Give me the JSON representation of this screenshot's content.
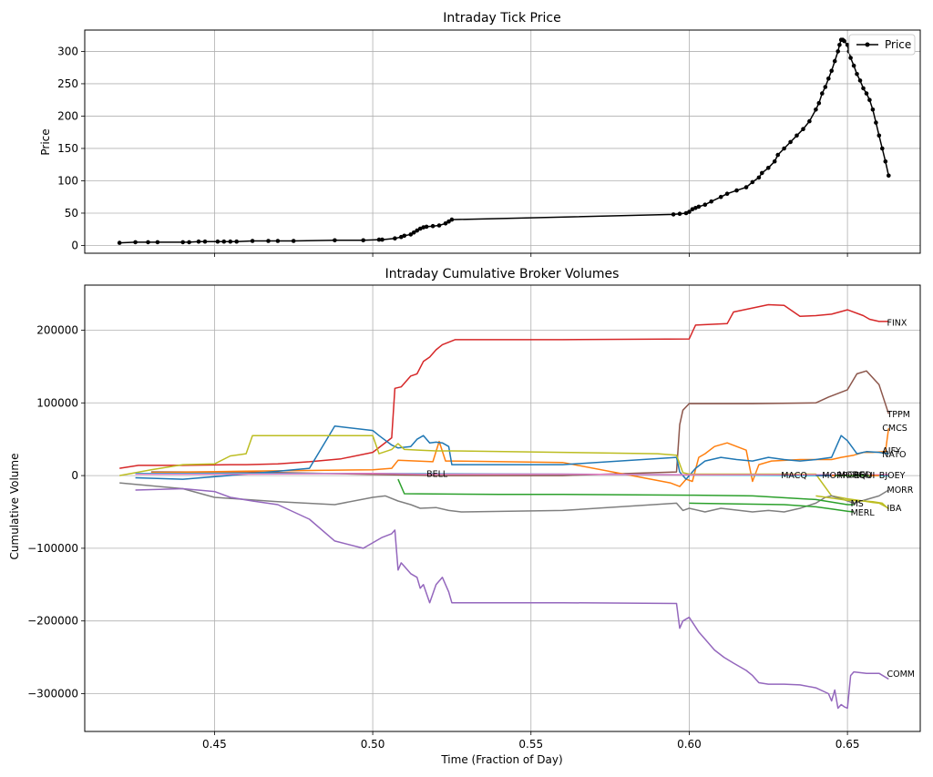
{
  "figure": {
    "xlabel": "Time (Fraction of Day)",
    "xticks": [
      0.45,
      0.5,
      0.55,
      0.6,
      0.65
    ],
    "xtick_labels": [
      "0.45",
      "0.50",
      "0.55",
      "0.60",
      "0.65"
    ],
    "xlim": [
      0.409,
      0.673
    ]
  },
  "chart_data": [
    {
      "type": "line",
      "title": "Intraday Tick Price",
      "xlabel": "",
      "ylabel": "Price",
      "ylim": [
        -12,
        333
      ],
      "yticks": [
        0,
        50,
        100,
        150,
        200,
        250,
        300
      ],
      "ytick_labels": [
        "0",
        "50",
        "100",
        "150",
        "200",
        "250",
        "300"
      ],
      "grid": true,
      "legend": {
        "position": "top-right",
        "entries": [
          "Price"
        ]
      },
      "series": [
        {
          "name": "Price",
          "color": "#000000",
          "marker": "dot",
          "x": [
            0.42,
            0.425,
            0.429,
            0.432,
            0.44,
            0.442,
            0.445,
            0.447,
            0.451,
            0.453,
            0.455,
            0.457,
            0.462,
            0.467,
            0.47,
            0.475,
            0.488,
            0.497,
            0.502,
            0.503,
            0.507,
            0.509,
            0.51,
            0.512,
            0.513,
            0.514,
            0.515,
            0.516,
            0.517,
            0.519,
            0.521,
            0.523,
            0.524,
            0.525,
            0.595,
            0.597,
            0.599,
            0.6,
            0.601,
            0.602,
            0.603,
            0.605,
            0.607,
            0.61,
            0.612,
            0.615,
            0.618,
            0.62,
            0.622,
            0.623,
            0.625,
            0.627,
            0.628,
            0.63,
            0.632,
            0.634,
            0.636,
            0.638,
            0.64,
            0.641,
            0.642,
            0.643,
            0.644,
            0.645,
            0.646,
            0.647,
            0.6475,
            0.648,
            0.6485,
            0.649,
            0.65,
            0.6505,
            0.651,
            0.652,
            0.653,
            0.654,
            0.655,
            0.656,
            0.657,
            0.658,
            0.659,
            0.66,
            0.661,
            0.662,
            0.663
          ],
          "y": [
            4,
            5,
            5,
            5,
            5,
            5,
            6,
            6,
            6,
            6,
            6,
            6,
            7,
            7,
            7,
            7,
            8,
            8,
            9,
            9,
            11,
            13,
            15,
            17,
            20,
            23,
            26,
            28,
            29,
            30,
            31,
            34,
            37,
            40,
            48,
            49,
            50,
            52,
            56,
            58,
            60,
            63,
            68,
            75,
            80,
            85,
            90,
            98,
            105,
            112,
            120,
            130,
            140,
            150,
            160,
            170,
            180,
            192,
            210,
            220,
            235,
            245,
            258,
            270,
            285,
            300,
            310,
            318,
            318,
            316,
            310,
            300,
            290,
            278,
            265,
            255,
            243,
            235,
            225,
            210,
            190,
            170,
            150,
            130,
            108
          ]
        }
      ]
    },
    {
      "type": "line",
      "title": "Intraday Cumulative Broker Volumes",
      "xlabel": "Time (Fraction of Day)",
      "ylabel": "Cumulative Volume",
      "ylim": [
        -352000,
        262000
      ],
      "yticks": [
        200000,
        100000,
        0,
        -100000,
        -200000,
        -300000
      ],
      "ytick_labels": [
        "200000",
        "100000",
        "0",
        "−100000",
        "−200000",
        "−300000"
      ],
      "grid": true,
      "series": [
        {
          "name": "FINX",
          "color": "#d62728",
          "x": [
            0.42,
            0.426,
            0.44,
            0.455,
            0.46,
            0.47,
            0.48,
            0.49,
            0.5,
            0.506,
            0.507,
            0.509,
            0.512,
            0.514,
            0.516,
            0.518,
            0.52,
            0.522,
            0.526,
            0.56,
            0.6,
            0.602,
            0.612,
            0.614,
            0.625,
            0.63,
            0.635,
            0.64,
            0.645,
            0.65,
            0.655,
            0.657,
            0.66,
            0.663
          ],
          "y": [
            10000,
            14000,
            14000,
            15000,
            15000,
            16000,
            19000,
            23000,
            32000,
            52000,
            120000,
            122000,
            137000,
            140000,
            157000,
            163000,
            173000,
            180000,
            187000,
            187000,
            188000,
            207000,
            209000,
            225000,
            235000,
            234000,
            219000,
            220000,
            222000,
            228000,
            220000,
            215000,
            212000,
            212000
          ]
        },
        {
          "name": "TPPM",
          "color": "#8c564b",
          "x": [
            0.43,
            0.46,
            0.52,
            0.56,
            0.596,
            0.597,
            0.598,
            0.6,
            0.62,
            0.64,
            0.644,
            0.65,
            0.653,
            0.656,
            0.66,
            0.663
          ],
          "y": [
            5000,
            5000,
            0,
            0,
            5000,
            70000,
            90000,
            99000,
            99000,
            100000,
            108000,
            118000,
            140000,
            144000,
            125000,
            85000
          ]
        },
        {
          "name": "CMCS",
          "color": "#ff7f0e",
          "x": [
            0.43,
            0.46,
            0.5,
            0.506,
            0.508,
            0.519,
            0.521,
            0.523,
            0.525,
            0.56,
            0.594,
            0.597,
            0.599,
            0.601,
            0.603,
            0.605,
            0.608,
            0.612,
            0.618,
            0.62,
            0.622,
            0.626,
            0.635,
            0.645,
            0.648,
            0.652,
            0.655,
            0.658,
            0.662,
            0.663
          ],
          "y": [
            4000,
            6000,
            8000,
            10000,
            21000,
            19000,
            47000,
            20000,
            20000,
            18000,
            -10000,
            -15000,
            -5000,
            -8000,
            25000,
            30000,
            40000,
            45000,
            35000,
            -8000,
            15000,
            20000,
            22000,
            22000,
            25000,
            28000,
            32000,
            32000,
            33000,
            65000
          ]
        },
        {
          "name": "NATO",
          "color": "#1f77b4",
          "x": [
            0.425,
            0.44,
            0.46,
            0.48,
            0.488,
            0.5,
            0.502,
            0.506,
            0.508,
            0.512,
            0.514,
            0.516,
            0.518,
            0.52,
            0.522,
            0.524,
            0.525,
            0.56,
            0.596,
            0.597,
            0.599,
            0.602,
            0.605,
            0.61,
            0.615,
            0.62,
            0.625,
            0.63,
            0.635,
            0.64,
            0.645,
            0.648,
            0.65,
            0.653,
            0.656,
            0.66,
            0.663
          ],
          "y": [
            -3000,
            -5000,
            2000,
            10000,
            68000,
            62000,
            55000,
            42000,
            38000,
            40000,
            50000,
            55000,
            45000,
            46000,
            45000,
            40000,
            15000,
            15000,
            25000,
            5000,
            -5000,
            10000,
            20000,
            25000,
            22000,
            20000,
            25000,
            22000,
            20000,
            22000,
            25000,
            55000,
            48000,
            30000,
            33000,
            32000,
            30000
          ]
        },
        {
          "name": "AIFY",
          "color": "#bcbd22",
          "x": [
            0.42,
            0.43,
            0.44,
            0.45,
            0.455,
            0.46,
            0.462,
            0.47,
            0.5,
            0.502,
            0.506,
            0.508,
            0.51,
            0.515,
            0.52,
            0.525,
            0.56,
            0.59,
            0.596,
            0.598,
            0.6,
            0.64,
            0.645,
            0.65,
            0.655,
            0.658,
            0.66,
            0.663
          ],
          "y": [
            0,
            8000,
            15000,
            16000,
            27000,
            30000,
            55000,
            55000,
            55000,
            30000,
            36000,
            44000,
            36000,
            35000,
            34000,
            34000,
            32000,
            30000,
            28000,
            4000,
            2000,
            2000,
            -28000,
            -32000,
            -35000,
            -37000,
            -38000,
            -45000
          ]
        },
        {
          "name": "BJOEY",
          "color": "#17becf",
          "x": [
            0.425,
            0.5,
            0.56,
            0.6,
            0.64,
            0.65,
            0.663
          ],
          "y": [
            3000,
            3000,
            2000,
            1000,
            0,
            0,
            0
          ]
        },
        {
          "name": "MORR",
          "color": "#7f7f7f",
          "x": [
            0.42,
            0.44,
            0.45,
            0.47,
            0.488,
            0.5,
            0.504,
            0.508,
            0.512,
            0.515,
            0.52,
            0.524,
            0.528,
            0.56,
            0.596,
            0.598,
            0.6,
            0.605,
            0.61,
            0.62,
            0.625,
            0.63,
            0.635,
            0.64,
            0.643,
            0.645,
            0.648,
            0.652,
            0.656,
            0.66,
            0.663
          ],
          "y": [
            -10000,
            -18000,
            -30000,
            -36000,
            -40000,
            -30000,
            -28000,
            -35000,
            -40000,
            -45000,
            -44000,
            -48000,
            -50000,
            -48000,
            -38000,
            -48000,
            -45000,
            -50000,
            -45000,
            -50000,
            -48000,
            -50000,
            -45000,
            -38000,
            -30000,
            -28000,
            -32000,
            -38000,
            -33000,
            -28000,
            -20000
          ]
        },
        {
          "name": "IBA",
          "color": "#bcbd22",
          "x": [
            0.64,
            0.645,
            0.65,
            0.655,
            0.658,
            0.661,
            0.663
          ],
          "y": [
            -28000,
            -31000,
            -34000,
            -35000,
            -36000,
            -38000,
            -46000
          ]
        },
        {
          "name": "MS",
          "color": "#2ca02c",
          "x": [
            0.508,
            0.51,
            0.54,
            0.56,
            0.6,
            0.62,
            0.64,
            0.65,
            0.652
          ],
          "y": [
            -5000,
            -25000,
            -26000,
            -26000,
            -27000,
            -28000,
            -33000,
            -40000,
            -40000
          ]
        },
        {
          "name": "MERL",
          "color": "#2ca02c",
          "x": [
            0.6,
            0.63,
            0.64,
            0.645,
            0.65,
            0.652
          ],
          "y": [
            -38000,
            -40000,
            -43000,
            -46000,
            -49000,
            -50000
          ]
        },
        {
          "name": "BELL",
          "color": "#e377c2",
          "x": [
            0.425,
            0.46,
            0.5,
            0.515,
            0.56,
            0.6,
            0.64,
            0.663
          ],
          "y": [
            2000,
            2000,
            3000,
            2000,
            2000,
            1000,
            1000,
            1000
          ]
        },
        {
          "name": "COMM",
          "color": "#9467bd",
          "x": [
            0.425,
            0.44,
            0.45,
            0.455,
            0.462,
            0.47,
            0.48,
            0.488,
            0.497,
            0.503,
            0.506,
            0.507,
            0.508,
            0.509,
            0.51,
            0.512,
            0.514,
            0.515,
            0.516,
            0.518,
            0.52,
            0.522,
            0.524,
            0.525,
            0.56,
            0.596,
            0.597,
            0.598,
            0.6,
            0.603,
            0.605,
            0.608,
            0.611,
            0.614,
            0.618,
            0.62,
            0.622,
            0.625,
            0.63,
            0.635,
            0.64,
            0.644,
            0.645,
            0.646,
            0.647,
            0.648,
            0.649,
            0.65,
            0.651,
            0.652,
            0.656,
            0.66,
            0.663
          ],
          "y": [
            -20000,
            -18000,
            -22000,
            -30000,
            -35000,
            -40000,
            -60000,
            -90000,
            -100000,
            -85000,
            -80000,
            -75000,
            -130000,
            -120000,
            -125000,
            -135000,
            -140000,
            -155000,
            -150000,
            -175000,
            -150000,
            -140000,
            -160000,
            -175000,
            -175000,
            -176000,
            -210000,
            -200000,
            -195000,
            -215000,
            -225000,
            -240000,
            -250000,
            -258000,
            -268000,
            -275000,
            -285000,
            -287000,
            -287000,
            -288000,
            -292000,
            -300000,
            -310000,
            -295000,
            -320000,
            -315000,
            -318000,
            -320000,
            -275000,
            -270000,
            -272000,
            -272000,
            -280000
          ]
        },
        {
          "name": "MACQ",
          "color": "#d62728",
          "x": [
            0.64,
            0.65,
            0.656
          ],
          "y": [
            0,
            0,
            0
          ]
        },
        {
          "name": "MORG",
          "color": "#1f77b4",
          "x": [
            0.64,
            0.65,
            0.655
          ],
          "y": [
            0,
            0,
            0
          ]
        },
        {
          "name": "CRED",
          "color": "#ff7f0e",
          "x": [
            0.645,
            0.655,
            0.66
          ],
          "y": [
            0,
            0,
            0
          ]
        },
        {
          "name": "EQUI",
          "color": "#2ca02c",
          "x": [
            0.646,
            0.652,
            0.657
          ],
          "y": [
            0,
            0,
            0
          ]
        }
      ],
      "annotations": [
        {
          "text": "FINX",
          "x": 0.6625,
          "y": 210000
        },
        {
          "text": "TPPM",
          "x": 0.6625,
          "y": 84000
        },
        {
          "text": "CMCS",
          "x": 0.661,
          "y": 65000
        },
        {
          "text": "AIFY",
          "x": 0.661,
          "y": 34000
        },
        {
          "text": "NATO",
          "x": 0.661,
          "y": 29000
        },
        {
          "text": "BELL",
          "x": 0.517,
          "y": 2000
        },
        {
          "text": "MACQ",
          "x": 0.629,
          "y": 0
        },
        {
          "text": "MORR",
          "x": 0.642,
          "y": 0
        },
        {
          "text": "MORG",
          "x": 0.647,
          "y": 1000
        },
        {
          "text": "CRED",
          "x": 0.65,
          "y": 1000
        },
        {
          "text": "EQUI",
          "x": 0.652,
          "y": 0
        },
        {
          "text": "BJOEY",
          "x": 0.66,
          "y": 0
        },
        {
          "text": "MORR",
          "x": 0.6625,
          "y": -20000
        },
        {
          "text": "MS",
          "x": 0.651,
          "y": -39000
        },
        {
          "text": "MERL",
          "x": 0.651,
          "y": -51000
        },
        {
          "text": "IBA",
          "x": 0.6625,
          "y": -45000
        },
        {
          "text": "COMM",
          "x": 0.6625,
          "y": -273000
        }
      ]
    }
  ]
}
